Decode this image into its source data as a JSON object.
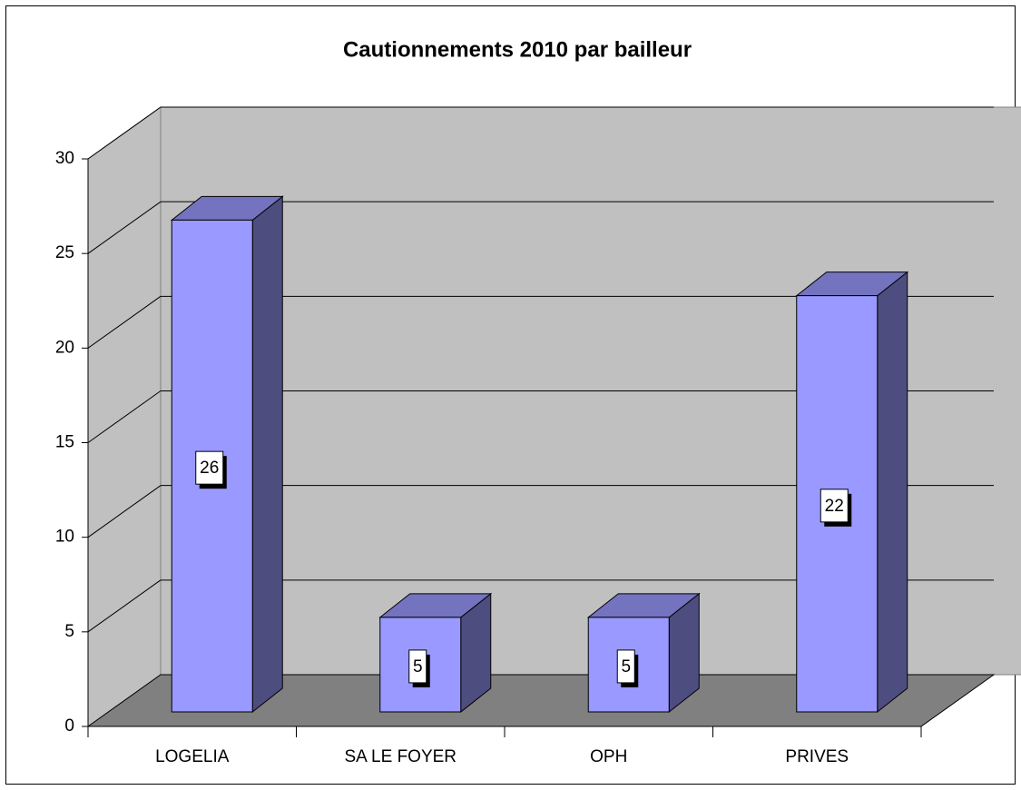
{
  "chart_data": {
    "type": "bar3d",
    "title": "Cautionnements 2010 par bailleur",
    "categories": [
      "LOGELIA",
      "SA LE FOYER",
      "OPH",
      "PRIVES"
    ],
    "values": [
      26,
      5,
      5,
      22
    ],
    "color": "#9999ff",
    "ylim": [
      0,
      30
    ],
    "yticks": [
      0,
      5,
      10,
      15,
      20,
      25,
      30
    ],
    "grid": true
  }
}
